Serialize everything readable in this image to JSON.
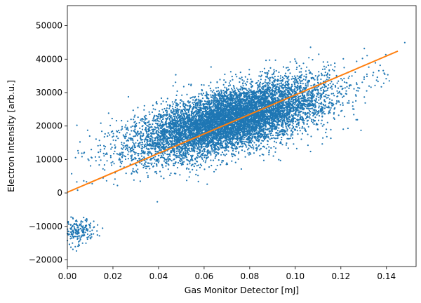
{
  "chart_data": {
    "type": "scatter",
    "xlabel": "Gas Monitor Detector [mJ]",
    "ylabel": "Electron Intensity [arb.u.]",
    "xlim": [
      0.0,
      0.153
    ],
    "ylim": [
      -22000,
      56000
    ],
    "xticks": [
      0.0,
      0.02,
      0.04,
      0.06,
      0.08,
      0.1,
      0.12,
      0.14
    ],
    "xtick_labels": [
      "0.00",
      "0.02",
      "0.04",
      "0.06",
      "0.08",
      "0.10",
      "0.12",
      "0.14"
    ],
    "yticks": [
      -20000,
      -10000,
      0,
      10000,
      20000,
      30000,
      40000,
      50000
    ],
    "ytick_labels": [
      "−20000",
      "−10000",
      "0",
      "10000",
      "20000",
      "30000",
      "40000",
      "50000"
    ],
    "grid": false,
    "legend": "none",
    "series": [
      {
        "kind": "scatter",
        "color": "#1f77b4",
        "clusters": [
          {
            "x_center": 0.072,
            "y_center": 22000,
            "x_spread": 0.021,
            "y_spread": 5800,
            "correlation": 0.62
          },
          {
            "x_center": 0.004,
            "y_center": -11500,
            "x_spread": 0.004,
            "y_spread": 1900,
            "correlation": 0.1
          }
        ]
      },
      {
        "kind": "fit-line",
        "color": "#ff7f0e",
        "x": [
          0.0,
          0.145
        ],
        "y": [
          200,
          42400
        ]
      }
    ]
  }
}
